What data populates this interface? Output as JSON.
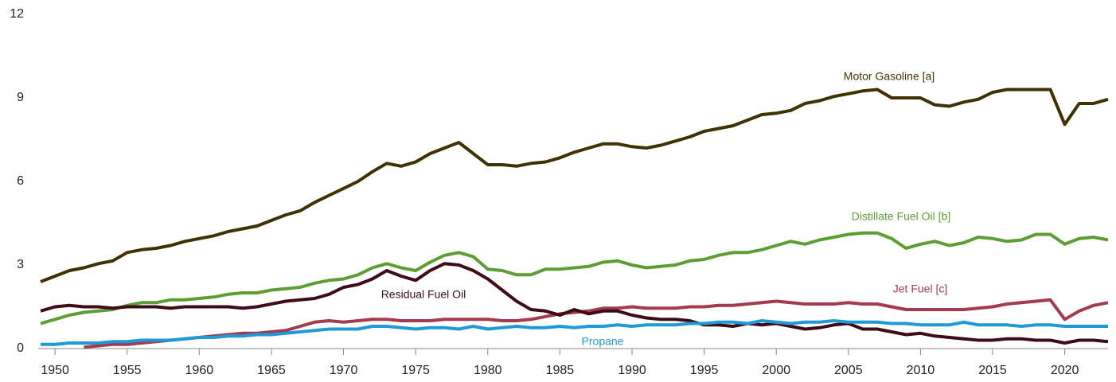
{
  "chart_data": {
    "type": "line",
    "xlim": [
      1949,
      2023
    ],
    "xticks": [
      1950,
      1955,
      1960,
      1965,
      1970,
      1975,
      1980,
      1985,
      1990,
      1995,
      2000,
      2005,
      2010,
      2015,
      2020
    ],
    "ylim": [
      0,
      12
    ],
    "yticks": [
      0,
      3,
      6,
      9,
      12
    ],
    "x": [
      1949,
      1950,
      1951,
      1952,
      1953,
      1954,
      1955,
      1956,
      1957,
      1958,
      1959,
      1960,
      1961,
      1962,
      1963,
      1964,
      1965,
      1966,
      1967,
      1968,
      1969,
      1970,
      1971,
      1972,
      1973,
      1974,
      1975,
      1976,
      1977,
      1978,
      1979,
      1980,
      1981,
      1982,
      1983,
      1984,
      1985,
      1986,
      1987,
      1988,
      1989,
      1990,
      1991,
      1992,
      1993,
      1994,
      1995,
      1996,
      1997,
      1998,
      1999,
      2000,
      2001,
      2002,
      2003,
      2004,
      2005,
      2006,
      2007,
      2008,
      2009,
      2010,
      2011,
      2012,
      2013,
      2014,
      2015,
      2016,
      2017,
      2018,
      2019,
      2020,
      2021,
      2022,
      2023
    ],
    "series": [
      {
        "name": "Motor Gasoline [a]",
        "color": "#3f3100",
        "values": [
          2.4,
          2.6,
          2.8,
          2.9,
          3.05,
          3.15,
          3.45,
          3.55,
          3.6,
          3.7,
          3.85,
          3.95,
          4.05,
          4.2,
          4.3,
          4.4,
          4.6,
          4.8,
          4.95,
          5.25,
          5.5,
          5.75,
          6.0,
          6.35,
          6.65,
          6.55,
          6.7,
          7.0,
          7.2,
          7.4,
          7.0,
          6.6,
          6.6,
          6.55,
          6.65,
          6.7,
          6.85,
          7.05,
          7.2,
          7.35,
          7.35,
          7.25,
          7.2,
          7.3,
          7.45,
          7.6,
          7.8,
          7.9,
          8.0,
          8.2,
          8.4,
          8.45,
          8.55,
          8.8,
          8.9,
          9.05,
          9.15,
          9.25,
          9.3,
          9.0,
          9.0,
          9.0,
          8.75,
          8.7,
          8.85,
          8.95,
          9.2,
          9.3,
          9.3,
          9.3,
          9.3,
          8.05,
          8.8,
          8.8,
          8.95
        ]
      },
      {
        "name": "Distillate Fuel Oil [b]",
        "color": "#5c9e33",
        "values": [
          0.9,
          1.05,
          1.2,
          1.3,
          1.35,
          1.4,
          1.55,
          1.65,
          1.65,
          1.75,
          1.75,
          1.8,
          1.85,
          1.95,
          2.0,
          2.0,
          2.1,
          2.15,
          2.2,
          2.35,
          2.45,
          2.5,
          2.65,
          2.9,
          3.05,
          2.9,
          2.8,
          3.1,
          3.35,
          3.45,
          3.3,
          2.85,
          2.8,
          2.65,
          2.65,
          2.85,
          2.85,
          2.9,
          2.95,
          3.1,
          3.15,
          3.0,
          2.9,
          2.95,
          3.0,
          3.15,
          3.2,
          3.35,
          3.45,
          3.45,
          3.55,
          3.7,
          3.85,
          3.75,
          3.9,
          4.0,
          4.1,
          4.15,
          4.15,
          3.95,
          3.6,
          3.75,
          3.85,
          3.7,
          3.8,
          4.0,
          3.95,
          3.85,
          3.9,
          4.1,
          4.1,
          3.75,
          3.95,
          4.0,
          3.9
        ]
      },
      {
        "name": "Jet Fuel [c]",
        "color": "#a33a4d",
        "values": [
          null,
          null,
          null,
          0.05,
          0.1,
          0.15,
          0.15,
          0.2,
          0.25,
          0.3,
          0.35,
          0.4,
          0.45,
          0.5,
          0.55,
          0.55,
          0.6,
          0.65,
          0.8,
          0.95,
          1.0,
          0.95,
          1.0,
          1.05,
          1.05,
          1.0,
          1.0,
          1.0,
          1.05,
          1.05,
          1.05,
          1.05,
          1.0,
          1.0,
          1.05,
          1.15,
          1.25,
          1.3,
          1.35,
          1.45,
          1.45,
          1.5,
          1.45,
          1.45,
          1.45,
          1.5,
          1.5,
          1.55,
          1.55,
          1.6,
          1.65,
          1.7,
          1.65,
          1.6,
          1.6,
          1.6,
          1.65,
          1.6,
          1.6,
          1.5,
          1.4,
          1.4,
          1.4,
          1.4,
          1.4,
          1.45,
          1.5,
          1.6,
          1.65,
          1.7,
          1.75,
          1.05,
          1.35,
          1.55,
          1.65
        ]
      },
      {
        "name": "Residual Fuel Oil",
        "color": "#3d0c17",
        "values": [
          1.35,
          1.5,
          1.55,
          1.5,
          1.5,
          1.45,
          1.5,
          1.5,
          1.5,
          1.45,
          1.5,
          1.5,
          1.5,
          1.5,
          1.45,
          1.5,
          1.6,
          1.7,
          1.75,
          1.8,
          1.95,
          2.2,
          2.3,
          2.5,
          2.8,
          2.6,
          2.45,
          2.8,
          3.05,
          3.0,
          2.8,
          2.5,
          2.1,
          1.7,
          1.4,
          1.35,
          1.2,
          1.4,
          1.25,
          1.35,
          1.35,
          1.2,
          1.1,
          1.05,
          1.05,
          1.0,
          0.85,
          0.85,
          0.8,
          0.9,
          0.85,
          0.9,
          0.8,
          0.7,
          0.75,
          0.85,
          0.9,
          0.7,
          0.7,
          0.6,
          0.5,
          0.55,
          0.45,
          0.4,
          0.35,
          0.3,
          0.3,
          0.35,
          0.35,
          0.3,
          0.3,
          0.2,
          0.3,
          0.3,
          0.25
        ]
      },
      {
        "name": "Propane",
        "color": "#1f9ad6",
        "values": [
          0.15,
          0.15,
          0.2,
          0.2,
          0.2,
          0.25,
          0.25,
          0.3,
          0.3,
          0.3,
          0.35,
          0.4,
          0.4,
          0.45,
          0.45,
          0.5,
          0.5,
          0.55,
          0.6,
          0.65,
          0.7,
          0.7,
          0.7,
          0.8,
          0.8,
          0.75,
          0.7,
          0.75,
          0.75,
          0.7,
          0.8,
          0.7,
          0.75,
          0.8,
          0.75,
          0.75,
          0.8,
          0.75,
          0.8,
          0.8,
          0.85,
          0.8,
          0.85,
          0.85,
          0.85,
          0.9,
          0.9,
          0.95,
          0.95,
          0.9,
          1.0,
          0.95,
          0.9,
          0.95,
          0.95,
          1.0,
          0.95,
          0.95,
          0.95,
          0.9,
          0.9,
          0.85,
          0.85,
          0.85,
          0.95,
          0.85,
          0.85,
          0.85,
          0.8,
          0.85,
          0.85,
          0.8,
          0.8,
          0.8,
          0.8
        ]
      }
    ]
  }
}
